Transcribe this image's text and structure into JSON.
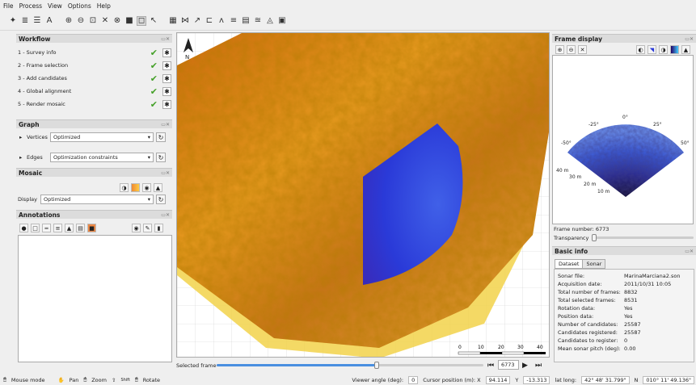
{
  "menu": [
    "File",
    "Process",
    "View",
    "Options",
    "Help"
  ],
  "workflow": {
    "title": "Workflow",
    "steps": [
      "1 - Survey info",
      "2 - Frame selection",
      "3 - Add candidates",
      "4 - Global alignment",
      "5 - Render mosaic"
    ]
  },
  "graph": {
    "title": "Graph",
    "vertices_label": "Vertices",
    "vertices_value": "Optimized",
    "edges_label": "Edges",
    "edges_value": "Optimization constraints"
  },
  "mosaic": {
    "title": "Mosaic",
    "display_label": "Display",
    "display_value": "Optimized"
  },
  "annotations": {
    "title": "Annotations"
  },
  "map": {
    "north_label": "N",
    "scale_ticks": [
      "0",
      "10",
      "20",
      "30",
      "40"
    ],
    "scale_unit": "m"
  },
  "selected_frame": {
    "label": "Selected frame",
    "value": "6773",
    "progress": 0.6
  },
  "frame_display": {
    "title": "Frame display",
    "angle_labels": [
      "0°",
      "-25°",
      "25°",
      "-50°",
      "50°"
    ],
    "range_labels": [
      "40 m",
      "30 m",
      "20 m",
      "10 m"
    ],
    "frame_number_label": "Frame number:",
    "frame_number_value": "6773",
    "transparency_label": "Transparency"
  },
  "basic_info": {
    "title": "Basic info",
    "tabs": [
      "Dataset",
      "Sonar"
    ],
    "rows": [
      {
        "k": "Sonar file:",
        "v": "MarinaMarciana2.son"
      },
      {
        "k": "Acquisition date:",
        "v": "2011/10/31 10:05"
      },
      {
        "k": "Total number of frames:",
        "v": "8832"
      },
      {
        "k": "Total selected frames:",
        "v": "8531"
      },
      {
        "k": "Rotation data:",
        "v": "Yes"
      },
      {
        "k": "Position data:",
        "v": "Yes"
      },
      {
        "k": "Number of candidates:",
        "v": "25587"
      },
      {
        "k": "Candidates registered:",
        "v": "25587"
      },
      {
        "k": "Candidates to register:",
        "v": "0"
      },
      {
        "k": "Mean sonar pitch (deg):",
        "v": "0.00"
      }
    ]
  },
  "status": {
    "mouse_mode": "Mouse mode",
    "pan": "Pan",
    "zoom": "Zoom",
    "shift": "Shift",
    "rotate": "Rotate",
    "viewer_angle_label": "Viewer angle (deg):",
    "viewer_angle": "0",
    "cursor_label": "Cursor position (m): X",
    "cursor_x": "94.114",
    "y_label": "Y",
    "cursor_y": "-13.313",
    "latlong_label": "lat long:",
    "lat": "42° 48' 31.799\"",
    "n_label": "N",
    "long": "010° 11' 49.136\""
  },
  "colors": {
    "accent_check": "#44a028",
    "sonar_blue": "#2a3ad8",
    "mosaic_orange": "#e89a20"
  }
}
